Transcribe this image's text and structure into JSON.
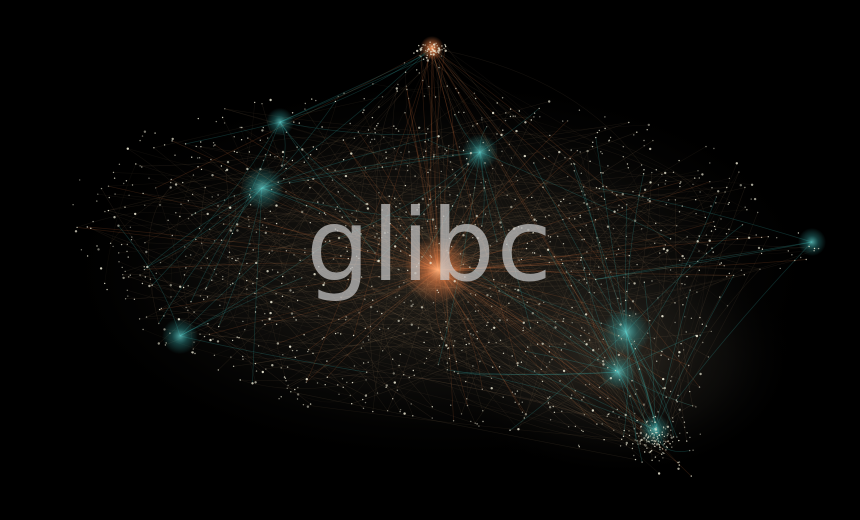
{
  "image": {
    "logo_text": "glibc",
    "colors": {
      "background": "#000000",
      "node": "#e9e6d2",
      "edge_warm": "#c8a27a",
      "edge_cyan": "#3fc7c6",
      "hub_orange": "#ff8a4c",
      "logo_text": "#c8c8c8"
    }
  }
}
